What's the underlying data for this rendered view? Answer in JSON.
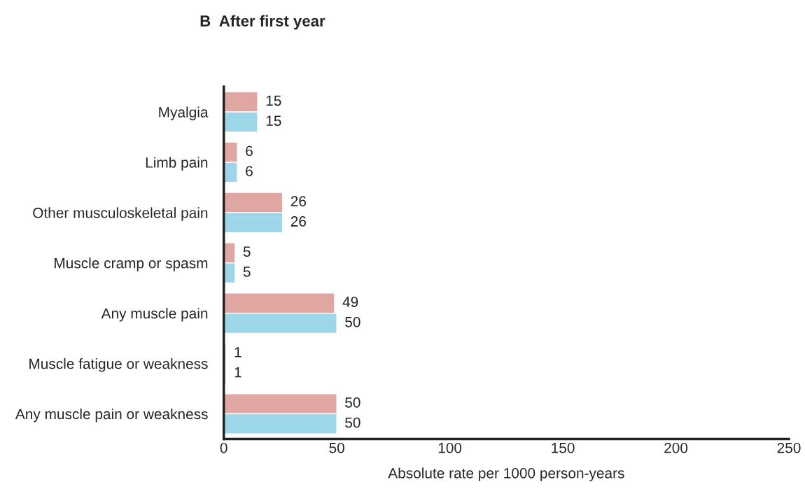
{
  "chart_data": {
    "type": "bar",
    "orientation": "horizontal",
    "title": "B  After first year",
    "xlabel": "Absolute rate per 1000 person-years",
    "categories": [
      "Myalgia",
      "Limb pain",
      "Other musculoskeletal pain",
      "Muscle cramp or spasm",
      "Any muscle pain",
      "Muscle fatigue or weakness",
      "Any muscle pain or weakness"
    ],
    "series": [
      {
        "color": "#e0a6a2",
        "values": [
          15,
          6,
          26,
          5,
          49,
          1,
          50
        ]
      },
      {
        "color": "#9dd6e8",
        "values": [
          15,
          6,
          26,
          5,
          50,
          1,
          50
        ]
      }
    ],
    "xlim": [
      0,
      250
    ],
    "xticks": [
      0,
      50,
      100,
      150,
      200,
      250
    ],
    "data_labels": true
  }
}
